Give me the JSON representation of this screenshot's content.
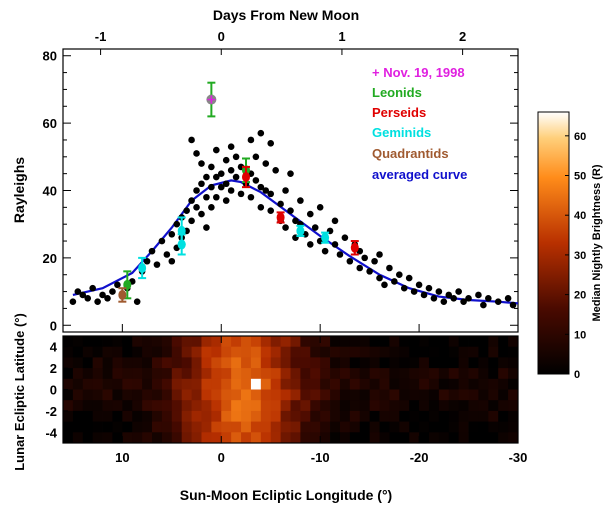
{
  "chart_data": [
    {
      "type": "scatter",
      "top_axis": {
        "label": "Days From New Moon",
        "ticks": [
          "-1",
          "0",
          "1",
          "2"
        ],
        "tick_values": [
          -1,
          0,
          1,
          2
        ]
      },
      "xlim": [
        16,
        -30
      ],
      "ylim": [
        -2,
        82
      ],
      "ylabel": "Rayleighs",
      "y_ticks": [
        "0",
        "20",
        "40",
        "60",
        "80"
      ],
      "y_tick_values": [
        0,
        20,
        40,
        60,
        80
      ],
      "legend_placement": "top-right",
      "series": [
        {
          "name": "+ Nov. 19, 1998",
          "color": "#e020e0",
          "marker": "plus",
          "points": [
            [
              1,
              67
            ]
          ]
        },
        {
          "name": "Leonids",
          "color": "#22aa22",
          "marker": "errorbar",
          "points": [
            [
              9.5,
              12,
              4
            ],
            [
              1,
              67,
              5
            ],
            [
              -2.5,
              46,
              3.5
            ]
          ]
        },
        {
          "name": "Perseids",
          "color": "#e00000",
          "marker": "errorbar",
          "points": [
            [
              -2.5,
              44,
              3
            ],
            [
              -6,
              32,
              1.5
            ],
            [
              -13.5,
              23,
              2
            ]
          ]
        },
        {
          "name": "Geminids",
          "color": "#00e0e0",
          "marker": "errorbar",
          "points": [
            [
              8,
              17,
              3
            ],
            [
              4,
              24,
              3
            ],
            [
              4,
              28,
              4
            ],
            [
              -8,
              28,
              1.5
            ],
            [
              -10.5,
              26,
              1.5
            ]
          ]
        },
        {
          "name": "Quadrantids",
          "color": "#a05a30",
          "marker": "errorbar",
          "points": [
            [
              10,
              9,
              2
            ]
          ]
        },
        {
          "name": "averaged curve",
          "color": "#1010cc",
          "marker": "line",
          "points": [
            [
              15,
              9
            ],
            [
              12,
              11
            ],
            [
              9,
              15.5
            ],
            [
              7,
              22
            ],
            [
              5,
              29
            ],
            [
              3,
              37
            ],
            [
              1,
              41.5
            ],
            [
              -1,
              43
            ],
            [
              -2,
              42.5
            ],
            [
              -4,
              39.5
            ],
            [
              -7,
              33
            ],
            [
              -10,
              26.5
            ],
            [
              -13,
              20.5
            ],
            [
              -16,
              15
            ],
            [
              -19,
              11
            ],
            [
              -22,
              8.5
            ],
            [
              -25,
              7.5
            ],
            [
              -28,
              7
            ],
            [
              -30,
              6.5
            ]
          ]
        },
        {
          "name": "nightly points",
          "color": "#000000",
          "marker": "dot",
          "points": [
            [
              15,
              7
            ],
            [
              14.5,
              10
            ],
            [
              14,
              9
            ],
            [
              13.5,
              8
            ],
            [
              13,
              11
            ],
            [
              12.5,
              7
            ],
            [
              12,
              9
            ],
            [
              11.5,
              8
            ],
            [
              11,
              10
            ],
            [
              10.5,
              12
            ],
            [
              10,
              9
            ],
            [
              9.5,
              11
            ],
            [
              9,
              13
            ],
            [
              8.5,
              7
            ],
            [
              8,
              16
            ],
            [
              7.5,
              19
            ],
            [
              7,
              22
            ],
            [
              6.5,
              18
            ],
            [
              6,
              25
            ],
            [
              5.5,
              21
            ],
            [
              5,
              27
            ],
            [
              5,
              19
            ],
            [
              4.5,
              23
            ],
            [
              4.5,
              30
            ],
            [
              4,
              32
            ],
            [
              4,
              26
            ],
            [
              3.5,
              34
            ],
            [
              3.5,
              28
            ],
            [
              3,
              37
            ],
            [
              3,
              31
            ],
            [
              3,
              55
            ],
            [
              2.5,
              40
            ],
            [
              2.5,
              35
            ],
            [
              2.5,
              51
            ],
            [
              2,
              42
            ],
            [
              2,
              33
            ],
            [
              2,
              48
            ],
            [
              1.5,
              38
            ],
            [
              1.5,
              44
            ],
            [
              1.5,
              29
            ],
            [
              1,
              47
            ],
            [
              1,
              41
            ],
            [
              1,
              35
            ],
            [
              0.5,
              52
            ],
            [
              0.5,
              44
            ],
            [
              0.5,
              38
            ],
            [
              0,
              45
            ],
            [
              0,
              41
            ],
            [
              -0.5,
              49
            ],
            [
              -0.5,
              42
            ],
            [
              -0.5,
              37
            ],
            [
              -1,
              53
            ],
            [
              -1,
              46
            ],
            [
              -1,
              40
            ],
            [
              -1.5,
              44
            ],
            [
              -1.5,
              50
            ],
            [
              -2,
              39
            ],
            [
              -2,
              47
            ],
            [
              -2.5,
              42
            ],
            [
              -3,
              45
            ],
            [
              -3,
              38
            ],
            [
              -3,
              55
            ],
            [
              -3.5,
              50
            ],
            [
              -3.5,
              43
            ],
            [
              -4,
              41
            ],
            [
              -4,
              35
            ],
            [
              -4,
              57
            ],
            [
              -4.5,
              48
            ],
            [
              -4.5,
              40
            ],
            [
              -5,
              39
            ],
            [
              -5,
              34
            ],
            [
              -5,
              54
            ],
            [
              -5.5,
              46
            ],
            [
              -6,
              36
            ],
            [
              -6,
              31
            ],
            [
              -6.5,
              40
            ],
            [
              -6.5,
              29
            ],
            [
              -7,
              34
            ],
            [
              -7,
              45
            ],
            [
              -7.5,
              31
            ],
            [
              -7.5,
              26
            ],
            [
              -8,
              37
            ],
            [
              -8,
              30
            ],
            [
              -8.5,
              27
            ],
            [
              -9,
              33
            ],
            [
              -9,
              24
            ],
            [
              -9.5,
              29
            ],
            [
              -10,
              25
            ],
            [
              -10,
              35
            ],
            [
              -10.5,
              22
            ],
            [
              -11,
              28
            ],
            [
              -11.5,
              24
            ],
            [
              -11.5,
              31
            ],
            [
              -12,
              21
            ],
            [
              -12.5,
              26
            ],
            [
              -13,
              19
            ],
            [
              -13.5,
              24
            ],
            [
              -14,
              17
            ],
            [
              -14,
              22
            ],
            [
              -14.5,
              20
            ],
            [
              -15,
              16
            ],
            [
              -15.5,
              19
            ],
            [
              -16,
              14
            ],
            [
              -16,
              21
            ],
            [
              -16.5,
              12
            ],
            [
              -17,
              17
            ],
            [
              -17.5,
              13
            ],
            [
              -18,
              15
            ],
            [
              -18.5,
              11
            ],
            [
              -19,
              14
            ],
            [
              -19.5,
              10
            ],
            [
              -20,
              12
            ],
            [
              -20.5,
              9
            ],
            [
              -21,
              11
            ],
            [
              -21.5,
              8
            ],
            [
              -22,
              10
            ],
            [
              -22.5,
              7
            ],
            [
              -23,
              9
            ],
            [
              -23.5,
              8
            ],
            [
              -24,
              10
            ],
            [
              -24.5,
              7
            ],
            [
              -25,
              8
            ],
            [
              -26,
              9
            ],
            [
              -26.5,
              6
            ],
            [
              -27,
              8
            ],
            [
              -28,
              7
            ],
            [
              -29,
              8
            ],
            [
              -29.5,
              6
            ]
          ]
        }
      ]
    },
    {
      "type": "heatmap",
      "xlabel": "Sun-Moon Ecliptic Longitude (°)",
      "ylabel": "Lunar Ecliptic Latitude (°)",
      "x_ticks": [
        "10",
        "0",
        "-10",
        "-20",
        "-30"
      ],
      "x_tick_values": [
        10,
        0,
        -10,
        -20,
        -30
      ],
      "y_ticks": [
        "4",
        "2",
        "0",
        "-2",
        "-4"
      ],
      "y_tick_values": [
        4,
        2,
        0,
        -2,
        -4
      ],
      "xlim": [
        16,
        -30
      ],
      "ylim": [
        -5,
        5
      ],
      "grid": {
        "lon_start": 16,
        "lon_step": -1,
        "cols": 46,
        "lat_start": 5,
        "lat_step": -1,
        "rows": 10
      },
      "colorbar": {
        "label": "Median Nightly Brightness (R)",
        "ticks": [
          "0",
          "10",
          "20",
          "30",
          "40",
          "50",
          "60"
        ],
        "tick_values": [
          0,
          10,
          20,
          30,
          40,
          50,
          60
        ],
        "range": [
          0,
          66
        ]
      }
    }
  ]
}
